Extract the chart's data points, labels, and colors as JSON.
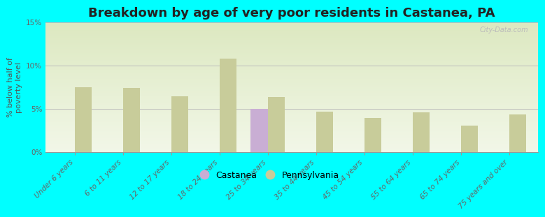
{
  "title": "Breakdown by age of very poor residents in Castanea, PA",
  "ylabel": "% below half of\npoverty level",
  "categories": [
    "Under 6 years",
    "6 to 11 years",
    "12 to 17 years",
    "18 to 24 years",
    "25 to 34 years",
    "35 to 44 years",
    "45 to 54 years",
    "55 to 64 years",
    "65 to 74 years",
    "75 years and over"
  ],
  "castanea_values": [
    null,
    null,
    null,
    null,
    5.0,
    null,
    null,
    null,
    null,
    null
  ],
  "pennsylvania_values": [
    7.5,
    7.4,
    6.5,
    10.8,
    6.4,
    4.7,
    4.0,
    4.6,
    3.1,
    4.4
  ],
  "castanea_color": "#c9aed4",
  "pennsylvania_color": "#c8cc9a",
  "background_color": "#00ffff",
  "plot_bg_top": "#dce8c0",
  "plot_bg_bottom": "#f2f7e8",
  "ylim": [
    0,
    15
  ],
  "yticks": [
    0,
    5,
    10,
    15
  ],
  "ytick_labels": [
    "0%",
    "5%",
    "10%",
    "15%"
  ],
  "title_fontsize": 13,
  "axis_label_fontsize": 8,
  "tick_fontsize": 7.5,
  "watermark": "City-Data.com"
}
